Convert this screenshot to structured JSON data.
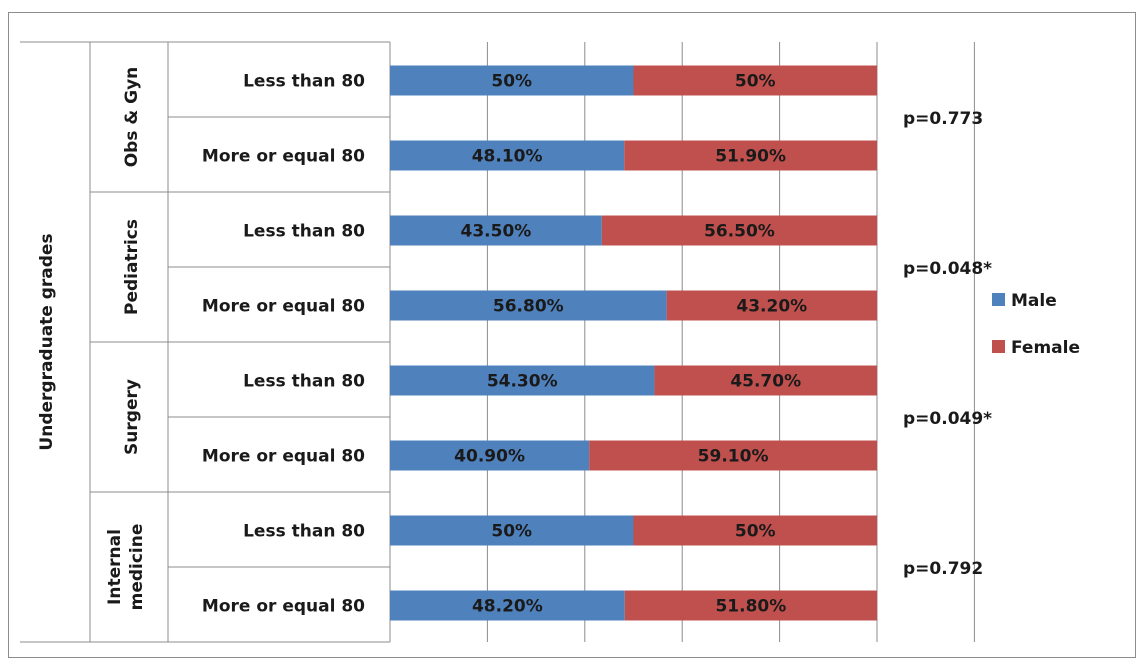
{
  "chart_data": {
    "type": "bar",
    "orientation": "horizontal",
    "stacked": true,
    "percent_stacked": true,
    "axis_title": "Undergraduate grades",
    "groups": [
      {
        "name": "Obs & Gyn",
        "p_value": "p=0.773",
        "categories": [
          "Less than 80",
          "More or equal 80"
        ],
        "male": [
          50,
          48.1
        ],
        "female": [
          50,
          51.9
        ],
        "male_labels": [
          "50%",
          "48.10%"
        ],
        "female_labels": [
          "50%",
          "51.90%"
        ]
      },
      {
        "name": "Pediatrics",
        "p_value": "p=0.048*",
        "categories": [
          "Less than 80",
          "More or equal 80"
        ],
        "male": [
          43.5,
          56.8
        ],
        "female": [
          56.5,
          43.2
        ],
        "male_labels": [
          "43.50%",
          "56.80%"
        ],
        "female_labels": [
          "56.50%",
          "43.20%"
        ]
      },
      {
        "name": "Surgery",
        "p_value": "p=0.049*",
        "categories": [
          "Less than 80",
          "More or equal 80"
        ],
        "male": [
          54.3,
          40.9
        ],
        "female": [
          45.7,
          59.1
        ],
        "male_labels": [
          "54.30%",
          "40.90%"
        ],
        "female_labels": [
          "45.70%",
          "59.10%"
        ]
      },
      {
        "name": "Internal medicine",
        "name_lines": [
          "Internal",
          "medicine"
        ],
        "p_value": "p=0.792",
        "categories": [
          "Less than 80",
          "More or equal 80"
        ],
        "male": [
          50,
          48.2
        ],
        "female": [
          50,
          51.8
        ],
        "male_labels": [
          "50%",
          "48.20%"
        ],
        "female_labels": [
          "50%",
          "51.80%"
        ]
      }
    ],
    "series": [
      {
        "name": "Male",
        "color": "#4f81bd"
      },
      {
        "name": "Female",
        "color": "#c0504d"
      }
    ],
    "xlim": [
      0,
      120
    ],
    "grid": true,
    "legend_position": "right"
  }
}
